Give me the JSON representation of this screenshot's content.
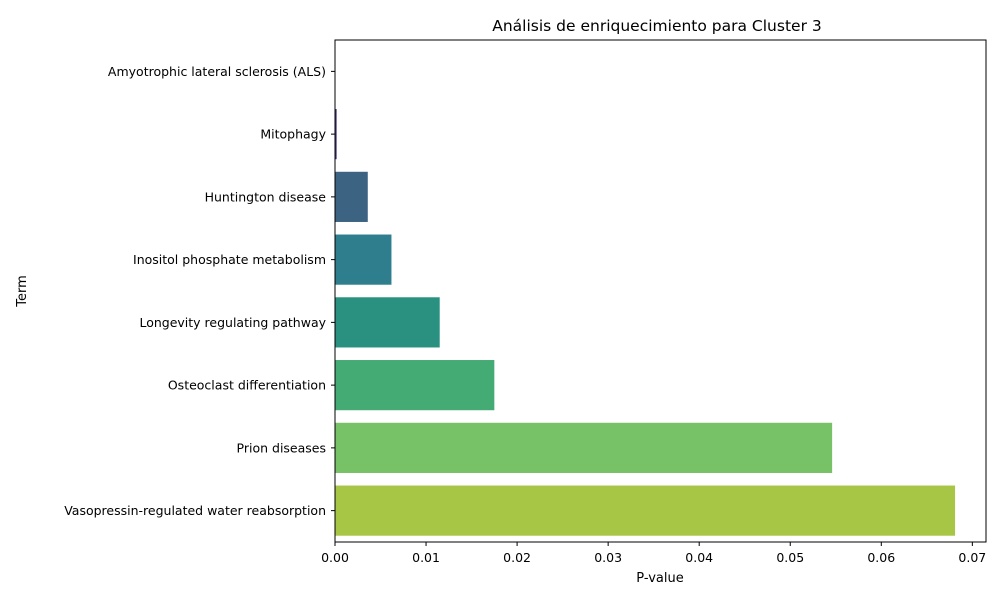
{
  "chart_data": {
    "type": "bar",
    "orientation": "horizontal",
    "title": "Análisis de enriquecimiento para Cluster 3",
    "xlabel": "P-value",
    "ylabel": "Term",
    "xlim": [
      0,
      0.0715
    ],
    "xticks": [
      "0.00",
      "0.01",
      "0.02",
      "0.03",
      "0.04",
      "0.05",
      "0.06",
      "0.07"
    ],
    "grid": false,
    "categories": [
      "Amyotrophic lateral sclerosis (ALS)",
      "Mitophagy",
      "Huntington disease",
      "Inositol phosphate metabolism",
      "Longevity regulating pathway",
      "Osteoclast differentiation",
      "Prion diseases",
      "Vasopressin-regulated water reabsorption"
    ],
    "values": [
      1e-05,
      0.00018,
      0.0036,
      0.0062,
      0.0115,
      0.0175,
      0.0546,
      0.0681
    ],
    "colors": [
      "#440154",
      "#46327e",
      "#3d6383",
      "#2e7e8e",
      "#2a9180",
      "#45ab75",
      "#77c166",
      "#a8c645"
    ]
  }
}
